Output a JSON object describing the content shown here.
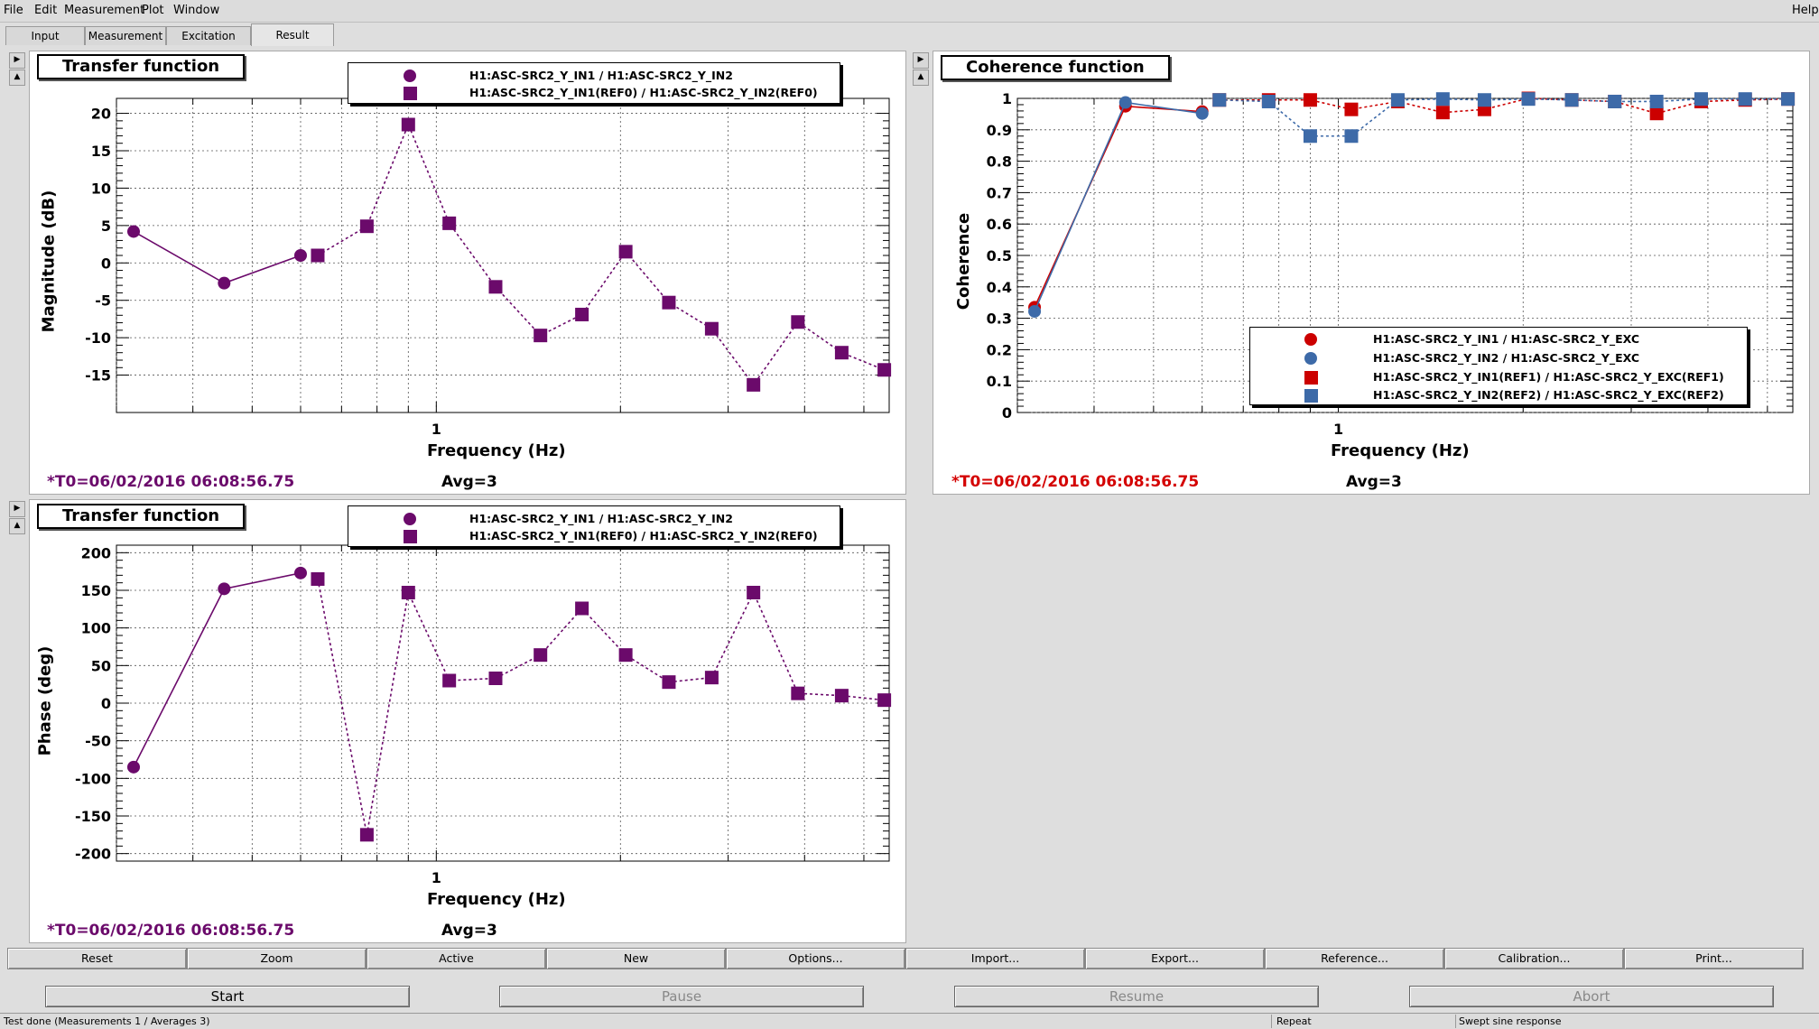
{
  "menu": {
    "file": "File",
    "edit": "Edit",
    "measurement": "Measurement",
    "plot": "Plot",
    "window": "Window",
    "help": "Help"
  },
  "tabs": [
    {
      "label": "Input"
    },
    {
      "label": "Measurement"
    },
    {
      "label": "Excitation"
    },
    {
      "label": "Result"
    }
  ],
  "panels": {
    "magnitude": {
      "title": "Transfer function",
      "legend": [
        "H1:ASC-SRC2_Y_IN1 / H1:ASC-SRC2_Y_IN2",
        "H1:ASC-SRC2_Y_IN1(REF0) / H1:ASC-SRC2_Y_IN2(REF0)"
      ],
      "xlabel": "Frequency (Hz)",
      "ylabel": "Magnitude (dB)",
      "x_tick_major": "1",
      "t0": "*T0=06/02/2016 06:08:56.75",
      "avg": "Avg=3"
    },
    "coherence": {
      "title": "Coherence function",
      "legend": [
        "H1:ASC-SRC2_Y_IN1 / H1:ASC-SRC2_Y_EXC",
        "H1:ASC-SRC2_Y_IN2 / H1:ASC-SRC2_Y_EXC",
        "H1:ASC-SRC2_Y_IN1(REF1) / H1:ASC-SRC2_Y_EXC(REF1)",
        "H1:ASC-SRC2_Y_IN2(REF2) / H1:ASC-SRC2_Y_EXC(REF2)"
      ],
      "xlabel": "Frequency (Hz)",
      "ylabel": "Coherence",
      "x_tick_major": "1",
      "t0": "*T0=06/02/2016 06:08:56.75",
      "avg": "Avg=3"
    },
    "phase": {
      "title": "Transfer function",
      "legend": [
        "H1:ASC-SRC2_Y_IN1 / H1:ASC-SRC2_Y_IN2",
        "H1:ASC-SRC2_Y_IN1(REF0) / H1:ASC-SRC2_Y_IN2(REF0)"
      ],
      "xlabel": "Frequency (Hz)",
      "ylabel": "Phase (deg)",
      "x_tick_major": "1",
      "t0": "*T0=06/02/2016 06:08:56.75",
      "avg": "Avg=3"
    }
  },
  "colors": {
    "purple": "#6b0a6b",
    "red": "#cc0000",
    "blue": "#3d6aa8",
    "t0_magnitude": "#6b0a6b",
    "t0_coherence": "#d40000"
  },
  "chart_data": [
    {
      "type": "line",
      "xscale": "log",
      "xlim": [
        0.3,
        5.5
      ],
      "ylim": [
        -20,
        22
      ],
      "yticks": [
        -15,
        -10,
        -5,
        0,
        5,
        10,
        15,
        20
      ],
      "grid": true,
      "legend_position": "top",
      "series": [
        {
          "name": "H1:ASC-SRC2_Y_IN1 / H1:ASC-SRC2_Y_IN2",
          "marker": "circle",
          "x": [
            0.32,
            0.45,
            0.6
          ],
          "y": [
            4.2,
            -2.7,
            1.0
          ]
        },
        {
          "name": "H1:ASC-SRC2_Y_IN1(REF0) / H1:ASC-SRC2_Y_IN2(REF0)",
          "marker": "square",
          "x": [
            0.64,
            0.77,
            0.9,
            1.05,
            1.25,
            1.48,
            1.73,
            2.04,
            2.4,
            2.82,
            3.3,
            3.9,
            4.6,
            5.4
          ],
          "y": [
            1.0,
            4.9,
            18.5,
            5.3,
            -3.2,
            -9.7,
            -6.9,
            1.5,
            -5.3,
            -8.8,
            -16.3,
            -7.9,
            -12.0,
            -14.3
          ]
        }
      ]
    },
    {
      "type": "line",
      "xscale": "log",
      "xlim": [
        0.3,
        5.5
      ],
      "ylim": [
        0,
        1
      ],
      "yticks": [
        0,
        0.1,
        0.2,
        0.3,
        0.4,
        0.5,
        0.6,
        0.7,
        0.8,
        0.9,
        1
      ],
      "grid": true,
      "legend_position": "bottom-right",
      "series": [
        {
          "name": "H1:ASC-SRC2_Y_IN1 / H1:ASC-SRC2_Y_EXC",
          "marker": "circle",
          "x": [
            0.32,
            0.45,
            0.6
          ],
          "y": [
            0.335,
            0.975,
            0.958
          ]
        },
        {
          "name": "H1:ASC-SRC2_Y_IN2 / H1:ASC-SRC2_Y_EXC",
          "marker": "circle",
          "x": [
            0.32,
            0.45,
            0.6
          ],
          "y": [
            0.322,
            0.987,
            0.952
          ]
        },
        {
          "name": "H1:ASC-SRC2_Y_IN1(REF1) / H1:ASC-SRC2_Y_EXC(REF1)",
          "marker": "square",
          "x": [
            0.64,
            0.77,
            0.9,
            1.05,
            1.25,
            1.48,
            1.73,
            2.04,
            2.4,
            2.82,
            3.3,
            3.9,
            4.6,
            5.4
          ],
          "y": [
            0.995,
            0.995,
            0.995,
            0.965,
            0.99,
            0.955,
            0.965,
            1.0,
            0.995,
            0.99,
            0.952,
            0.99,
            0.995,
            0.998
          ]
        },
        {
          "name": "H1:ASC-SRC2_Y_IN2(REF2) / H1:ASC-SRC2_Y_EXC(REF2)",
          "marker": "square",
          "x": [
            0.64,
            0.77,
            0.9,
            1.05,
            1.25,
            1.48,
            1.73,
            2.04,
            2.4,
            2.82,
            3.3,
            3.9,
            4.6,
            5.4
          ],
          "y": [
            0.995,
            0.99,
            0.88,
            0.88,
            0.995,
            0.998,
            0.995,
            0.998,
            0.995,
            0.99,
            0.99,
            0.998,
            0.998,
            0.998
          ]
        }
      ]
    },
    {
      "type": "line",
      "xscale": "log",
      "xlim": [
        0.3,
        5.5
      ],
      "ylim": [
        -210,
        210
      ],
      "yticks": [
        -200,
        -150,
        -100,
        -50,
        0,
        50,
        100,
        150,
        200
      ],
      "grid": true,
      "legend_position": "top",
      "series": [
        {
          "name": "H1:ASC-SRC2_Y_IN1 / H1:ASC-SRC2_Y_IN2",
          "marker": "circle",
          "x": [
            0.32,
            0.45,
            0.6
          ],
          "y": [
            -85,
            152,
            173
          ]
        },
        {
          "name": "H1:ASC-SRC2_Y_IN1(REF0) / H1:ASC-SRC2_Y_IN2(REF0)",
          "marker": "square",
          "x": [
            0.64,
            0.77,
            0.9,
            1.05,
            1.25,
            1.48,
            1.73,
            2.04,
            2.4,
            2.82,
            3.3,
            3.9,
            4.6,
            5.4
          ],
          "y": [
            165,
            -175,
            147,
            30,
            33,
            64,
            126,
            64,
            28,
            34,
            147,
            13,
            10,
            4
          ]
        }
      ]
    }
  ],
  "buttons": [
    "Reset",
    "Zoom",
    "Active",
    "New",
    "Options...",
    "Import...",
    "Export...",
    "Reference...",
    "Calibration...",
    "Print..."
  ],
  "controls": {
    "start": "Start",
    "pause": "Pause",
    "resume": "Resume",
    "abort": "Abort"
  },
  "status": {
    "message": "Test done (Measurements 1 / Averages 3)",
    "repeat": "Repeat",
    "mode": "Swept sine response"
  }
}
